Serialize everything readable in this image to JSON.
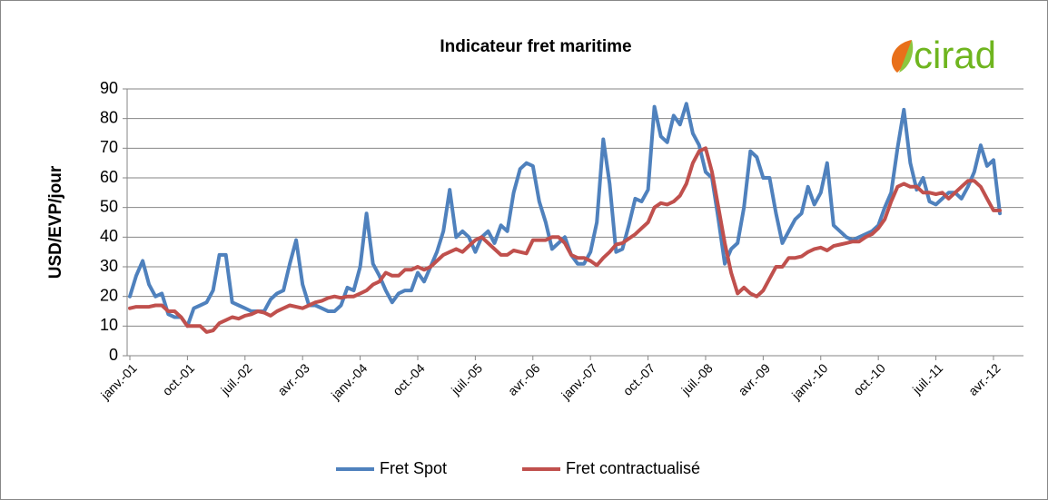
{
  "chart_data": {
    "type": "line",
    "title": "Indicateur fret maritime",
    "logo": "cirad",
    "y_label": "USD/EVP/jour",
    "categories": [
      "janv.-01",
      null,
      null,
      null,
      null,
      null,
      null,
      null,
      null,
      "oct.-01",
      null,
      null,
      null,
      null,
      null,
      null,
      null,
      null,
      "juil.-02",
      null,
      null,
      null,
      null,
      null,
      null,
      null,
      null,
      "avr.-03",
      null,
      null,
      null,
      null,
      null,
      null,
      null,
      null,
      "janv.-04",
      null,
      null,
      null,
      null,
      null,
      null,
      null,
      null,
      "oct.-04",
      null,
      null,
      null,
      null,
      null,
      null,
      null,
      null,
      "juil.-05",
      null,
      null,
      null,
      null,
      null,
      null,
      null,
      null,
      "avr.-06",
      null,
      null,
      null,
      null,
      null,
      null,
      null,
      null,
      "janv.-07",
      null,
      null,
      null,
      null,
      null,
      null,
      null,
      null,
      "oct.-07",
      null,
      null,
      null,
      null,
      null,
      null,
      null,
      null,
      "juil.-08",
      null,
      null,
      null,
      null,
      null,
      null,
      null,
      null,
      "avr.-09",
      null,
      null,
      null,
      null,
      null,
      null,
      null,
      null,
      "janv.-10",
      null,
      null,
      null,
      null,
      null,
      null,
      null,
      null,
      "oct.-10",
      null,
      null,
      null,
      null,
      null,
      null,
      null,
      null,
      "juil.-11",
      null,
      null,
      null,
      null,
      null,
      null,
      null,
      null,
      "avr.-12",
      null
    ],
    "series": [
      {
        "name": "Fret Spot",
        "color": "#4f81bd",
        "values": [
          20,
          27,
          32,
          24,
          20,
          21,
          14,
          13,
          13,
          10,
          16,
          17,
          18,
          22,
          34,
          34,
          18,
          17,
          16,
          15,
          15,
          15,
          19,
          21,
          22,
          31,
          39,
          24,
          17,
          17,
          16,
          15,
          15,
          17,
          23,
          22,
          30,
          48,
          31,
          27,
          22,
          18,
          21,
          22,
          22,
          28,
          25,
          30,
          35,
          42,
          56,
          40,
          42,
          40,
          35,
          40,
          42,
          38,
          44,
          42,
          55,
          63,
          65,
          64,
          52,
          45,
          36,
          38,
          40,
          34,
          31,
          31,
          35,
          45,
          73,
          58,
          35,
          36,
          44,
          53,
          52,
          56,
          84,
          74,
          72,
          81,
          78,
          85,
          75,
          71,
          62,
          60,
          46,
          31,
          36,
          38,
          50,
          69,
          67,
          60,
          60,
          48,
          38,
          42,
          46,
          48,
          57,
          51,
          55,
          65,
          44,
          42,
          40,
          39,
          40,
          41,
          42,
          44,
          50,
          55,
          70,
          83,
          65,
          56,
          60,
          52,
          51,
          53,
          55,
          55,
          53,
          57,
          62,
          71,
          64,
          66,
          48
        ]
      },
      {
        "name": "Fret contractualisé",
        "color": "#c0504d",
        "values": [
          16,
          16.5,
          16.5,
          16.5,
          17,
          17,
          15,
          15,
          13,
          10,
          10,
          10,
          8,
          8.5,
          11,
          12,
          13,
          12.5,
          13.5,
          14,
          15,
          14.5,
          13.5,
          15,
          16,
          17,
          16.5,
          16,
          17,
          18,
          18.5,
          19.5,
          20,
          19.5,
          20,
          20,
          21,
          22,
          24,
          25,
          28,
          27,
          27,
          29,
          29,
          30,
          29,
          30,
          32,
          34,
          35,
          36,
          35,
          37,
          39,
          40,
          38,
          36,
          34,
          34,
          35.5,
          35,
          34.5,
          39,
          39,
          39,
          40,
          40,
          38,
          34,
          33,
          33,
          32,
          30.5,
          33,
          35,
          37.5,
          38,
          39.5,
          41,
          43,
          45,
          50,
          51.5,
          51,
          52,
          54,
          58,
          65,
          69,
          70,
          62,
          50,
          38,
          28,
          21,
          23,
          21,
          20,
          22,
          26,
          30,
          30,
          33,
          33,
          33.5,
          35,
          36,
          36.5,
          35.5,
          37,
          37.5,
          38,
          38.5,
          38.5,
          40,
          41,
          43,
          46,
          52,
          57,
          58,
          57,
          57,
          55,
          55,
          54.5,
          55,
          53,
          55,
          57,
          59,
          59,
          57,
          53,
          49,
          49
        ]
      }
    ],
    "ylim": [
      0,
      90
    ],
    "yticks": [
      0,
      10,
      20,
      30,
      40,
      50,
      60,
      70,
      80,
      90
    ],
    "grid": true,
    "legend": "bottom"
  }
}
